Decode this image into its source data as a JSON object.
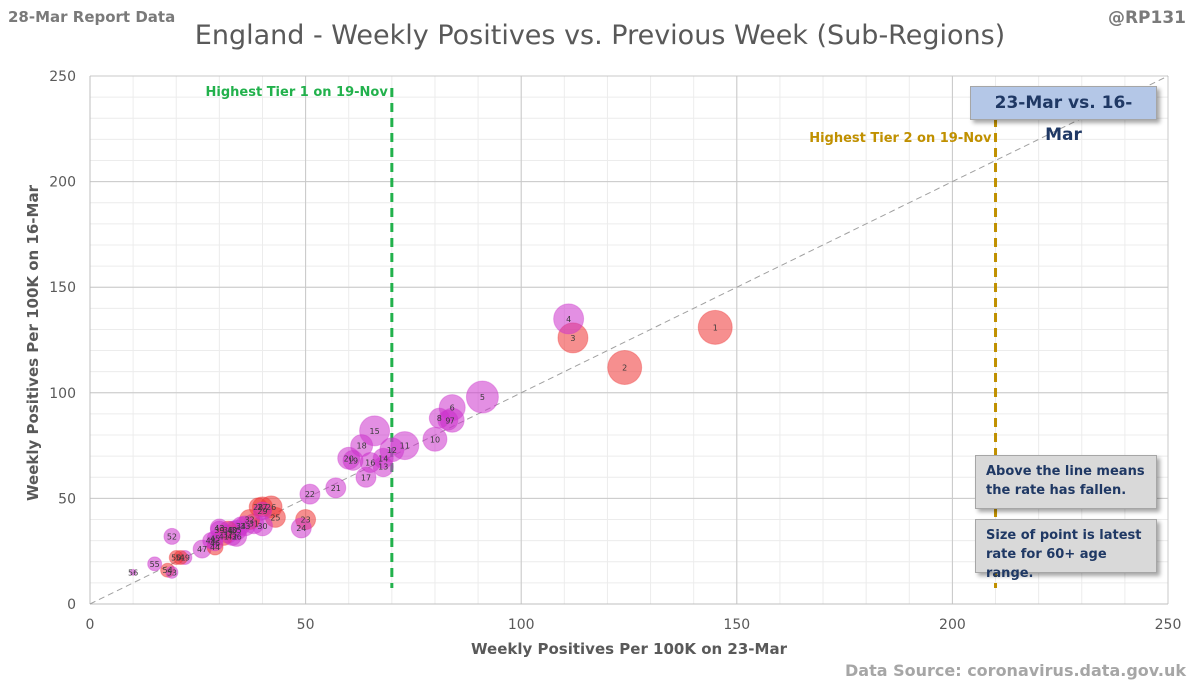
{
  "header": {
    "report_label": "28-Mar Report Data",
    "title": "England - Weekly Positives vs. Previous Week (Sub-Regions)",
    "author": "@RP131",
    "source": "Data Source: coronavirus.data.gov.uk"
  },
  "boxes": {
    "period": "23-Mar vs. 16-Mar",
    "note_line": "Above the line means the rate has fallen.",
    "note_size": "Size of point is latest rate for 60+ age range."
  },
  "chart_data": {
    "type": "scatter",
    "xlabel": "Weekly Positives Per 100K on 23-Mar",
    "ylabel": "Weekly Positives Per 100K on 16-Mar",
    "xlim": [
      0,
      250
    ],
    "ylim": [
      0,
      250
    ],
    "xticks": [
      "0",
      "50",
      "100",
      "150",
      "200",
      "250"
    ],
    "yticks": [
      "0",
      "50",
      "100",
      "150",
      "200",
      "250"
    ],
    "grid": true,
    "diagonal": "y = x",
    "reference_lines": [
      {
        "label": "Highest Tier 1 on 19-Nov",
        "x": 70,
        "color": "#22b14c"
      },
      {
        "label": "Highest Tier 2 on 19-Nov",
        "x": 210,
        "color": "#c09000"
      }
    ],
    "colors": {
      "magenta": "#cc33cc",
      "red": "#ee3333"
    },
    "points": [
      {
        "label": "1",
        "x": 145,
        "y": 131,
        "size": 17,
        "color": "red"
      },
      {
        "label": "2",
        "x": 124,
        "y": 112,
        "size": 17,
        "color": "red"
      },
      {
        "label": "3",
        "x": 112,
        "y": 126,
        "size": 15,
        "color": "red"
      },
      {
        "label": "4",
        "x": 111,
        "y": 135,
        "size": 15,
        "color": "magenta"
      },
      {
        "label": "5",
        "x": 91,
        "y": 98,
        "size": 16,
        "color": "magenta"
      },
      {
        "label": "6",
        "x": 84,
        "y": 93,
        "size": 13,
        "color": "magenta"
      },
      {
        "label": "7",
        "x": 84,
        "y": 87,
        "size": 12,
        "color": "magenta"
      },
      {
        "label": "8",
        "x": 81,
        "y": 88,
        "size": 10,
        "color": "magenta"
      },
      {
        "label": "9",
        "x": 83,
        "y": 87,
        "size": 10,
        "color": "magenta"
      },
      {
        "label": "10",
        "x": 80,
        "y": 78,
        "size": 12,
        "color": "magenta"
      },
      {
        "label": "11",
        "x": 73,
        "y": 75,
        "size": 14,
        "color": "magenta"
      },
      {
        "label": "12",
        "x": 70,
        "y": 73,
        "size": 12,
        "color": "magenta"
      },
      {
        "label": "13",
        "x": 68,
        "y": 65,
        "size": 10,
        "color": "magenta"
      },
      {
        "label": "14",
        "x": 68,
        "y": 69,
        "size": 10,
        "color": "magenta"
      },
      {
        "label": "15",
        "x": 66,
        "y": 82,
        "size": 15,
        "color": "magenta"
      },
      {
        "label": "16",
        "x": 65,
        "y": 67,
        "size": 10,
        "color": "magenta"
      },
      {
        "label": "17",
        "x": 64,
        "y": 60,
        "size": 10,
        "color": "magenta"
      },
      {
        "label": "18",
        "x": 63,
        "y": 75,
        "size": 11,
        "color": "magenta"
      },
      {
        "label": "19",
        "x": 61,
        "y": 68,
        "size": 10,
        "color": "magenta"
      },
      {
        "label": "20",
        "x": 60,
        "y": 69,
        "size": 11,
        "color": "magenta"
      },
      {
        "label": "21",
        "x": 57,
        "y": 55,
        "size": 10,
        "color": "magenta"
      },
      {
        "label": "22",
        "x": 51,
        "y": 52,
        "size": 10,
        "color": "magenta"
      },
      {
        "label": "23",
        "x": 50,
        "y": 40,
        "size": 10,
        "color": "red"
      },
      {
        "label": "24",
        "x": 49,
        "y": 36,
        "size": 10,
        "color": "magenta"
      },
      {
        "label": "25",
        "x": 43,
        "y": 41,
        "size": 10,
        "color": "red"
      },
      {
        "label": "26",
        "x": 42,
        "y": 46,
        "size": 11,
        "color": "red"
      },
      {
        "label": "27",
        "x": 40,
        "y": 46,
        "size": 10,
        "color": "red"
      },
      {
        "label": "28",
        "x": 39,
        "y": 46,
        "size": 9,
        "color": "red"
      },
      {
        "label": "29",
        "x": 40,
        "y": 44,
        "size": 9,
        "color": "magenta"
      },
      {
        "label": "30",
        "x": 40,
        "y": 37,
        "size": 10,
        "color": "magenta"
      },
      {
        "label": "31",
        "x": 38,
        "y": 38,
        "size": 10,
        "color": "magenta"
      },
      {
        "label": "32",
        "x": 37,
        "y": 40,
        "size": 10,
        "color": "red"
      },
      {
        "label": "33",
        "x": 36,
        "y": 37,
        "size": 10,
        "color": "magenta"
      },
      {
        "label": "34",
        "x": 35,
        "y": 37,
        "size": 9,
        "color": "magenta"
      },
      {
        "label": "35",
        "x": 34,
        "y": 35,
        "size": 10,
        "color": "magenta"
      },
      {
        "label": "36",
        "x": 34,
        "y": 32,
        "size": 10,
        "color": "magenta"
      },
      {
        "label": "37",
        "x": 32,
        "y": 33,
        "size": 9,
        "color": "magenta"
      },
      {
        "label": "38",
        "x": 32,
        "y": 35,
        "size": 9,
        "color": "red"
      },
      {
        "label": "39",
        "x": 30,
        "y": 35,
        "size": 9,
        "color": "magenta"
      },
      {
        "label": "40",
        "x": 33,
        "y": 35,
        "size": 9,
        "color": "magenta"
      },
      {
        "label": "41",
        "x": 31,
        "y": 32,
        "size": 9,
        "color": "red"
      },
      {
        "label": "42",
        "x": 33,
        "y": 32,
        "size": 9,
        "color": "magenta"
      },
      {
        "label": "43",
        "x": 30,
        "y": 36,
        "size": 9,
        "color": "magenta"
      },
      {
        "label": "44",
        "x": 29,
        "y": 27,
        "size": 8,
        "color": "red"
      },
      {
        "label": "45",
        "x": 29,
        "y": 31,
        "size": 8,
        "color": "magenta"
      },
      {
        "label": "46",
        "x": 29,
        "y": 29,
        "size": 8,
        "color": "magenta"
      },
      {
        "label": "47",
        "x": 26,
        "y": 26,
        "size": 9,
        "color": "magenta"
      },
      {
        "label": "48",
        "x": 28,
        "y": 30,
        "size": 8,
        "color": "magenta"
      },
      {
        "label": "49",
        "x": 22,
        "y": 22,
        "size": 7,
        "color": "magenta"
      },
      {
        "label": "50",
        "x": 20,
        "y": 22,
        "size": 7,
        "color": "red"
      },
      {
        "label": "51",
        "x": 21,
        "y": 22,
        "size": 7,
        "color": "red"
      },
      {
        "label": "52",
        "x": 19,
        "y": 32,
        "size": 8,
        "color": "magenta"
      },
      {
        "label": "53",
        "x": 19,
        "y": 15,
        "size": 6,
        "color": "magenta"
      },
      {
        "label": "54",
        "x": 18,
        "y": 16,
        "size": 7,
        "color": "red"
      },
      {
        "label": "55",
        "x": 15,
        "y": 19,
        "size": 7,
        "color": "magenta"
      },
      {
        "label": "56",
        "x": 10,
        "y": 15,
        "size": 3,
        "color": "magenta"
      }
    ]
  }
}
